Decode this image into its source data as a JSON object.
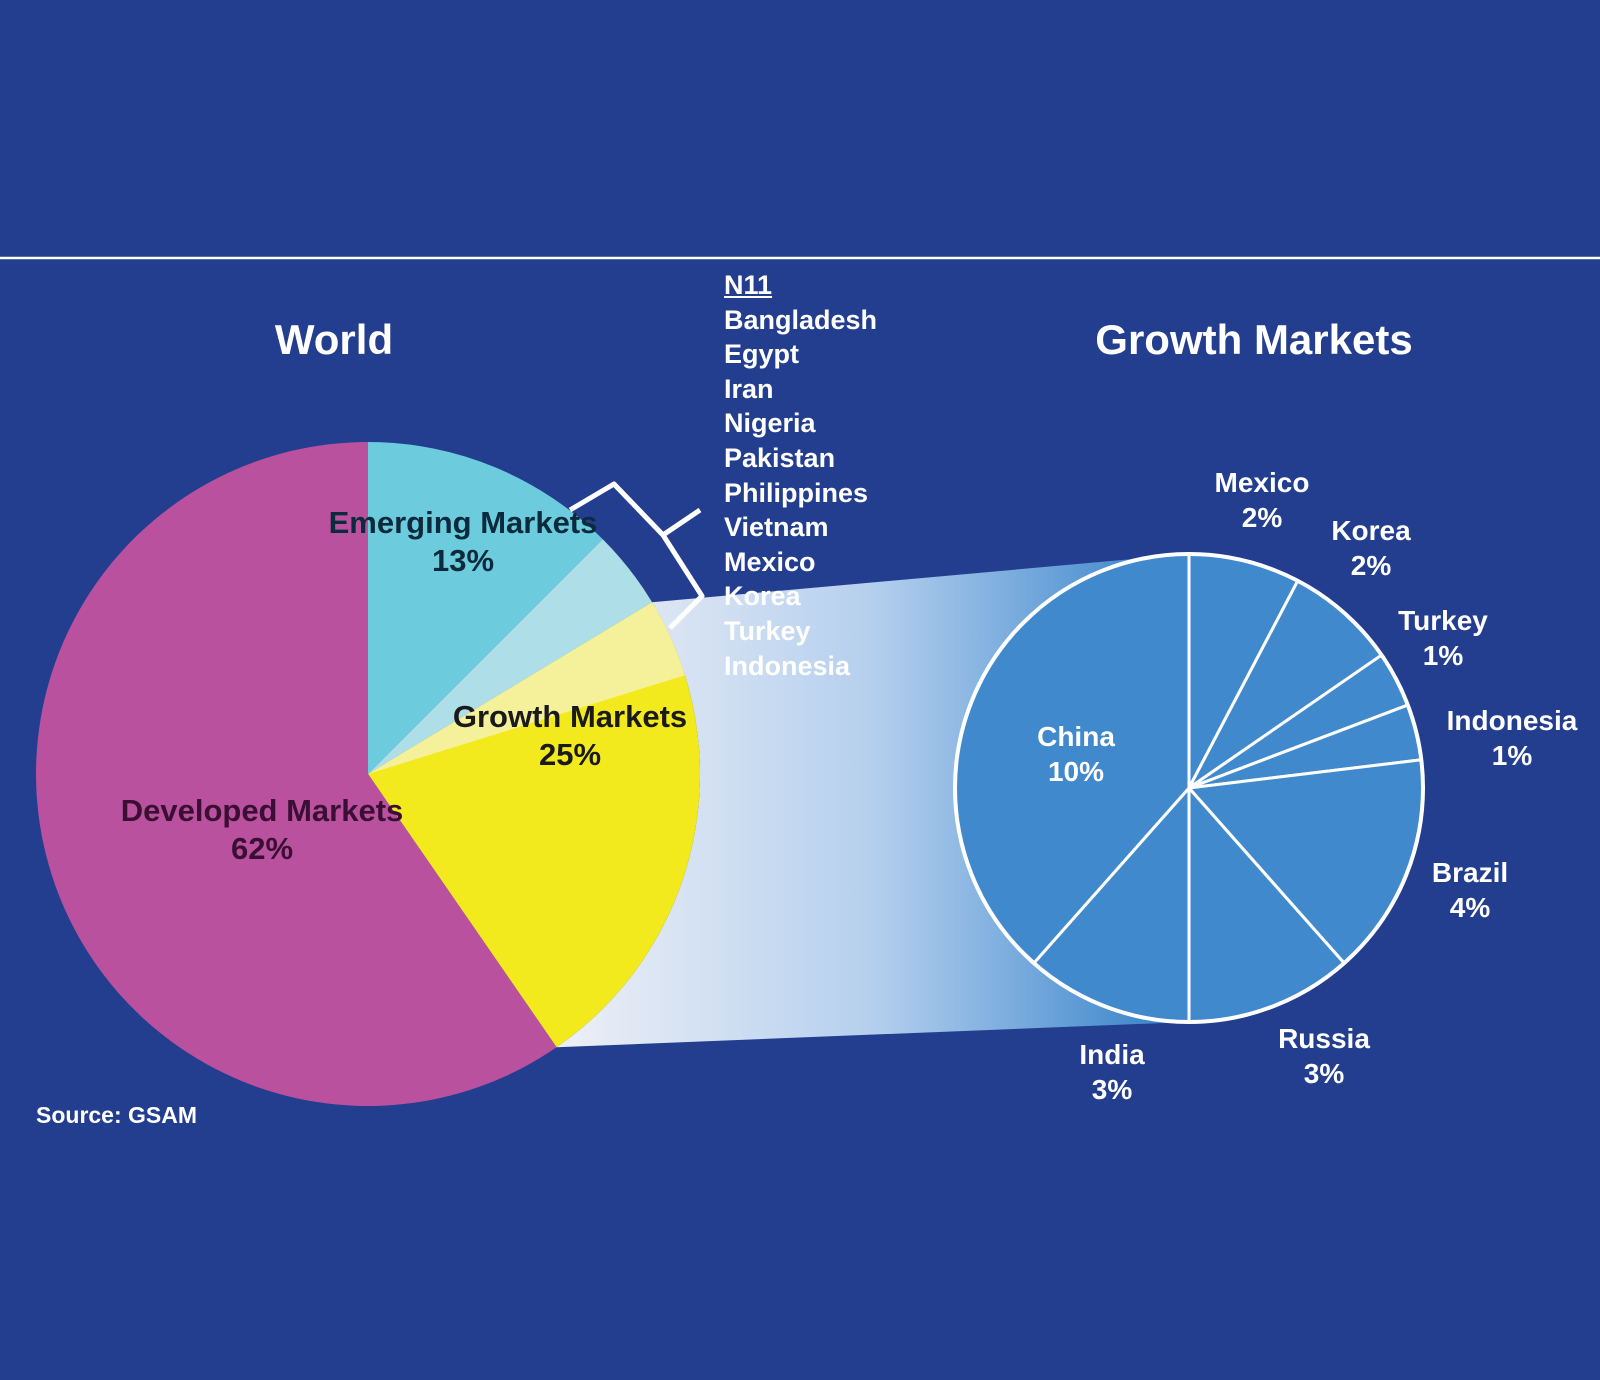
{
  "chart_data": [
    {
      "type": "pie",
      "title": "World",
      "slices": [
        {
          "label": "Emerging Markets",
          "value": 13,
          "display": "13%",
          "color": "#6ccbdd"
        },
        {
          "label": "N11",
          "value": 4,
          "display": "",
          "color": "#aedfe8"
        },
        {
          "label": "Growth Markets",
          "value": 25,
          "display": "25%",
          "color": "#f3ea1d",
          "highlight_part": 4,
          "highlight_color": "#f5f09a"
        },
        {
          "label": "Developed Markets",
          "value": 62,
          "display": "62%",
          "color": "#b9519f"
        }
      ]
    },
    {
      "type": "pie",
      "title": "Growth Markets",
      "color": "#4189cd",
      "slices": [
        {
          "label": "Mexico",
          "value": 2,
          "display": "2%"
        },
        {
          "label": "Korea",
          "value": 2,
          "display": "2%"
        },
        {
          "label": "Turkey",
          "value": 1,
          "display": "1%"
        },
        {
          "label": "Indonesia",
          "value": 1,
          "display": "1%"
        },
        {
          "label": "Brazil",
          "value": 4,
          "display": "4%"
        },
        {
          "label": "Russia",
          "value": 3,
          "display": "3%"
        },
        {
          "label": "India",
          "value": 3,
          "display": "3%"
        },
        {
          "label": "China",
          "value": 10,
          "display": "10%"
        }
      ]
    }
  ],
  "n11": {
    "title": "N11",
    "countries": [
      "Bangladesh",
      "Egypt",
      "Iran",
      "Nigeria",
      "Pakistan",
      "Philippines",
      "Vietnam",
      "Mexico",
      "Korea",
      "Turkey",
      "Indonesia"
    ]
  },
  "source": "Source: GSAM"
}
